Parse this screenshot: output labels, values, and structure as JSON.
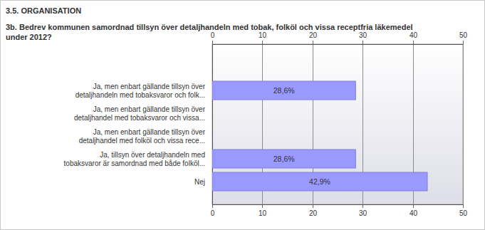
{
  "header": "3.5. ORGANISATION",
  "chart_data": {
    "type": "bar",
    "orientation": "horizontal",
    "title": "3b. Bedrev kommunen samordnad tillsyn över detaljhandeln med tobak, folköl och vissa receptfria läkemedel\nunder 2012?",
    "categories": [
      "Ja, men enbart gällande tillsyn över\ndetaljhandeln med tobaksvaror och folk...",
      "Ja, men enbart gällande tillsyn över\ndetaljhandel med tobaksvaror och vissa...",
      "Ja, men enbart gällande tillsyn över\ndetaljhandel med folköl och vissa rece...",
      "Ja, tillsyn över detaljhandeln med\ntobaksvaror är samordnad med både folköl...",
      "Nej"
    ],
    "values": [
      28.6,
      0,
      0,
      28.6,
      42.9
    ],
    "value_labels": [
      "28,6%",
      null,
      null,
      "28,6%",
      "42,9%"
    ],
    "data_labels": true,
    "color": "#9999ff",
    "xlim": [
      0,
      50
    ],
    "xticks": [
      0,
      10,
      20,
      30,
      40,
      50
    ],
    "grid": true
  }
}
